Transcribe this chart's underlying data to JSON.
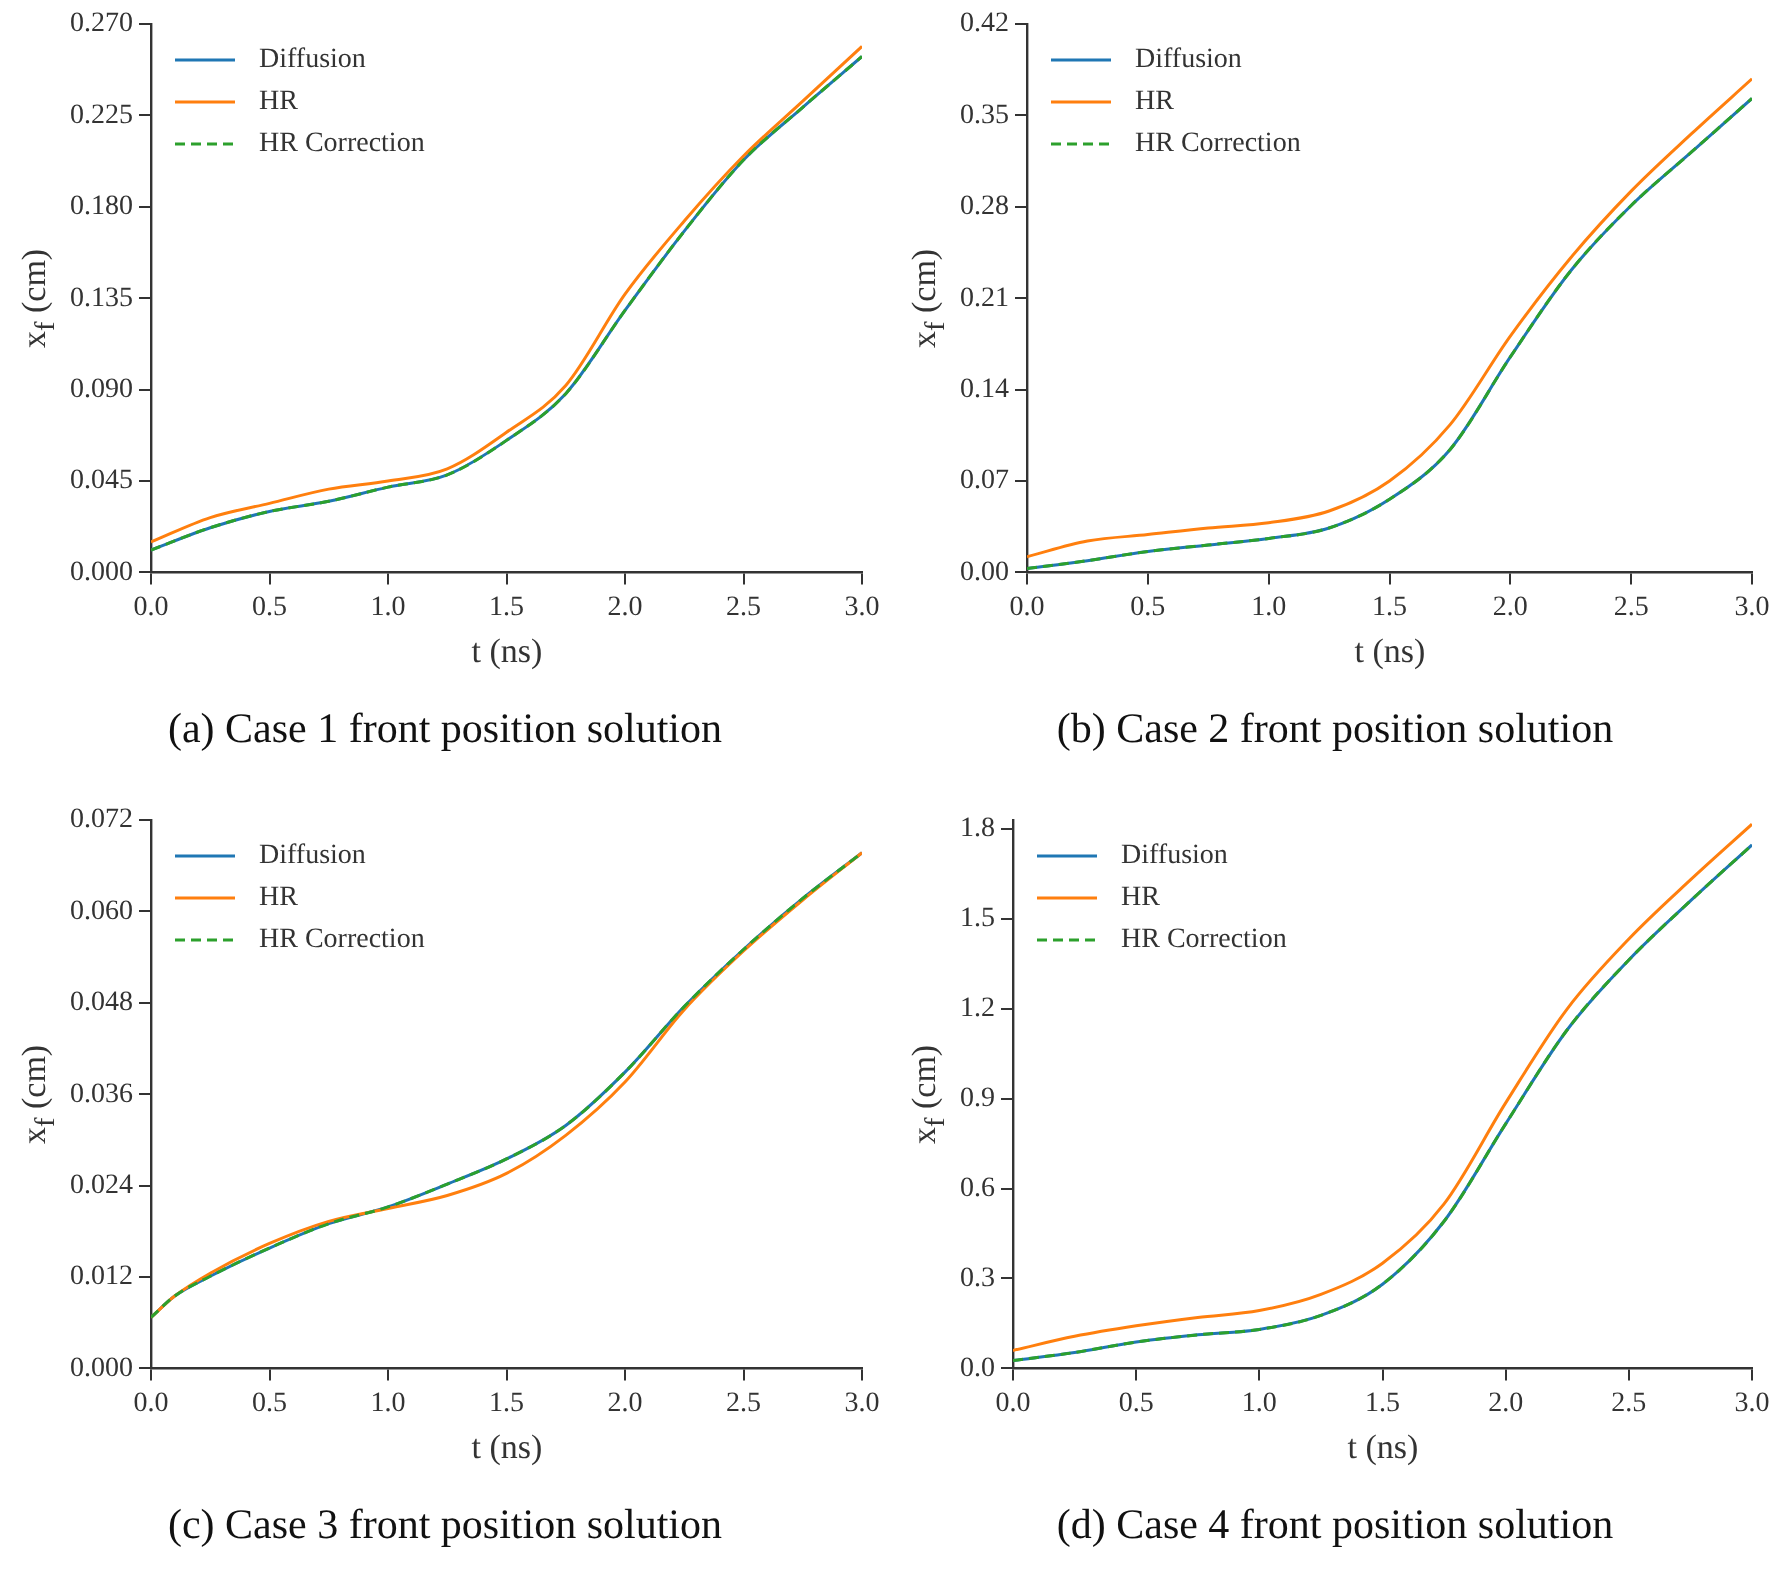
{
  "chart_data": [
    {
      "type": "line",
      "xlabel": "t (ns)",
      "ylabel": "x$_{f}$ (cm)",
      "legend": "top left",
      "annotations": [
        "(a) Case 1 front position solution"
      ],
      "xlim": [
        0,
        3
      ],
      "xticks": [
        {
          "value": 0,
          "label": "0.0"
        },
        {
          "value": 0.5,
          "label": "0.5"
        },
        {
          "value": 1,
          "label": "1.0"
        },
        {
          "value": 1.5,
          "label": "1.5"
        },
        {
          "value": 2,
          "label": "2.0"
        },
        {
          "value": 2.5,
          "label": "2.5"
        },
        {
          "value": 3,
          "label": "3.0"
        }
      ],
      "ylim": [
        0,
        0.27
      ],
      "yticks": [
        {
          "value": 0,
          "label": "0.000"
        },
        {
          "value": 0.045,
          "label": "0.045"
        },
        {
          "value": 0.09,
          "label": "0.090"
        },
        {
          "value": 0.135,
          "label": "0.135"
        },
        {
          "value": 0.18,
          "label": "0.180"
        },
        {
          "value": 0.225,
          "label": "0.225"
        },
        {
          "value": 0.27,
          "label": "0.270"
        }
      ],
      "x": [
        0,
        0.25,
        0.5,
        0.75,
        1,
        1.25,
        1.5,
        1.75,
        2,
        2.25,
        2.5,
        2.75,
        3
      ],
      "series": [
        {
          "name": "Diffusion",
          "color": "#1f77b4",
          "line_style": "solid",
          "values": [
            0.011,
            0.022,
            0.03,
            0.035,
            0.042,
            0.048,
            0.065,
            0.088,
            0.129,
            0.168,
            0.203,
            0.229,
            0.254
          ]
        },
        {
          "name": "HR",
          "color": "#ff7f0e",
          "line_style": "solid",
          "values": [
            0.015,
            0.027,
            0.034,
            0.041,
            0.045,
            0.051,
            0.069,
            0.092,
            0.137,
            0.173,
            0.205,
            0.232,
            0.259
          ]
        },
        {
          "name": "HR Correction",
          "color": "#2ca02c",
          "line_style": "dashed",
          "values": [
            0.011,
            0.022,
            0.03,
            0.035,
            0.042,
            0.048,
            0.065,
            0.088,
            0.129,
            0.168,
            0.203,
            0.229,
            0.254
          ]
        }
      ]
    },
    {
      "type": "line",
      "xlabel": "t (ns)",
      "ylabel": "x$_{f}$ (cm)",
      "legend": "top left",
      "annotations": [
        "(b) Case 2 front position solution"
      ],
      "xlim": [
        0,
        3
      ],
      "xticks": [
        {
          "value": 0,
          "label": "0.0"
        },
        {
          "value": 0.5,
          "label": "0.5"
        },
        {
          "value": 1,
          "label": "1.0"
        },
        {
          "value": 1.5,
          "label": "1.5"
        },
        {
          "value": 2,
          "label": "2.0"
        },
        {
          "value": 2.5,
          "label": "2.5"
        },
        {
          "value": 3,
          "label": "3.0"
        }
      ],
      "ylim": [
        0,
        0.42
      ],
      "yticks": [
        {
          "value": 0,
          "label": "0.00"
        },
        {
          "value": 0.07,
          "label": "0.07"
        },
        {
          "value": 0.14,
          "label": "0.14"
        },
        {
          "value": 0.21,
          "label": "0.21"
        },
        {
          "value": 0.28,
          "label": "0.28"
        },
        {
          "value": 0.35,
          "label": "0.35"
        },
        {
          "value": 0.42,
          "label": "0.42"
        }
      ],
      "x": [
        0,
        0.25,
        0.5,
        0.75,
        1,
        1.25,
        1.5,
        1.75,
        2,
        2.25,
        2.5,
        2.75,
        3
      ],
      "series": [
        {
          "name": "Diffusion",
          "color": "#1f77b4",
          "line_style": "solid",
          "values": [
            0.003,
            0.009,
            0.016,
            0.021,
            0.026,
            0.034,
            0.056,
            0.094,
            0.165,
            0.231,
            0.281,
            0.322,
            0.363
          ]
        },
        {
          "name": "HR",
          "color": "#ff7f0e",
          "line_style": "solid",
          "values": [
            0.012,
            0.024,
            0.029,
            0.034,
            0.038,
            0.047,
            0.07,
            0.113,
            0.181,
            0.241,
            0.292,
            0.336,
            0.378
          ]
        },
        {
          "name": "HR Correction",
          "color": "#2ca02c",
          "line_style": "dashed",
          "values": [
            0.003,
            0.009,
            0.016,
            0.021,
            0.026,
            0.034,
            0.056,
            0.094,
            0.165,
            0.231,
            0.281,
            0.322,
            0.363
          ]
        }
      ]
    },
    {
      "type": "line",
      "xlabel": "t (ns)",
      "ylabel": "x$_{f}$ (cm)",
      "legend": "top left",
      "annotations": [
        "(c) Case 3 front position solution"
      ],
      "xlim": [
        0,
        3
      ],
      "xticks": [
        {
          "value": 0,
          "label": "0.0"
        },
        {
          "value": 0.5,
          "label": "0.5"
        },
        {
          "value": 1,
          "label": "1.0"
        },
        {
          "value": 1.5,
          "label": "1.5"
        },
        {
          "value": 2,
          "label": "2.0"
        },
        {
          "value": 2.5,
          "label": "2.5"
        },
        {
          "value": 3,
          "label": "3.0"
        }
      ],
      "ylim": [
        0,
        0.072
      ],
      "yticks": [
        {
          "value": 0,
          "label": "0.000"
        },
        {
          "value": 0.012,
          "label": "0.012"
        },
        {
          "value": 0.024,
          "label": "0.024"
        },
        {
          "value": 0.036,
          "label": "0.036"
        },
        {
          "value": 0.048,
          "label": "0.048"
        },
        {
          "value": 0.06,
          "label": "0.060"
        },
        {
          "value": 0.072,
          "label": "0.072"
        }
      ],
      "x": [
        0,
        0.1,
        0.25,
        0.5,
        0.75,
        1,
        1.25,
        1.5,
        1.75,
        2,
        2.25,
        2.5,
        2.75,
        3
      ],
      "series": [
        {
          "name": "Diffusion",
          "color": "#1f77b4",
          "line_style": "solid",
          "values": [
            0.0067,
            0.0095,
            0.0121,
            0.0158,
            0.019,
            0.0212,
            0.0242,
            0.0275,
            0.0319,
            0.0389,
            0.0475,
            0.055,
            0.0617,
            0.0677
          ]
        },
        {
          "name": "HR",
          "color": "#ff7f0e",
          "line_style": "solid",
          "values": [
            0.0067,
            0.0095,
            0.0125,
            0.0164,
            0.0193,
            0.021,
            0.0227,
            0.0256,
            0.0306,
            0.0376,
            0.0471,
            0.0548,
            0.0615,
            0.0677
          ]
        },
        {
          "name": "HR Correction",
          "color": "#2ca02c",
          "line_style": "dashed",
          "values": [
            0.0067,
            0.0095,
            0.0121,
            0.0158,
            0.019,
            0.0212,
            0.0242,
            0.0275,
            0.0319,
            0.0389,
            0.0475,
            0.055,
            0.0617,
            0.0677
          ]
        }
      ]
    },
    {
      "type": "line",
      "xlabel": "t (ns)",
      "ylabel": "x$_{f}$ (cm)",
      "legend": "top left",
      "annotations": [
        "(d) Case 4 front position solution"
      ],
      "xlim": [
        0,
        3
      ],
      "xticks": [
        {
          "value": 0,
          "label": "0.0"
        },
        {
          "value": 0.5,
          "label": "0.5"
        },
        {
          "value": 1,
          "label": "1.0"
        },
        {
          "value": 1.5,
          "label": "1.5"
        },
        {
          "value": 2,
          "label": "2.0"
        },
        {
          "value": 2.5,
          "label": "2.5"
        },
        {
          "value": 3,
          "label": "3.0"
        }
      ],
      "ylim": [
        0,
        1.83
      ],
      "yticks": [
        {
          "value": 0,
          "label": "0.0"
        },
        {
          "value": 0.3,
          "label": "0.3"
        },
        {
          "value": 0.6,
          "label": "0.6"
        },
        {
          "value": 0.9,
          "label": "0.9"
        },
        {
          "value": 1.2,
          "label": "1.2"
        },
        {
          "value": 1.5,
          "label": "1.5"
        },
        {
          "value": 1.8,
          "label": "1.8"
        }
      ],
      "x": [
        0,
        0.25,
        0.5,
        0.75,
        1,
        1.25,
        1.5,
        1.75,
        2,
        2.25,
        2.5,
        2.75,
        3
      ],
      "series": [
        {
          "name": "Diffusion",
          "color": "#1f77b4",
          "line_style": "solid",
          "values": [
            0.026,
            0.053,
            0.088,
            0.112,
            0.13,
            0.177,
            0.281,
            0.491,
            0.816,
            1.13,
            1.363,
            1.56,
            1.747
          ]
        },
        {
          "name": "HR",
          "color": "#ff7f0e",
          "line_style": "solid",
          "values": [
            0.06,
            0.107,
            0.142,
            0.17,
            0.193,
            0.247,
            0.351,
            0.549,
            0.886,
            1.2,
            1.433,
            1.63,
            1.816
          ]
        },
        {
          "name": "HR Correction",
          "color": "#2ca02c",
          "line_style": "dashed",
          "values": [
            0.026,
            0.053,
            0.088,
            0.112,
            0.13,
            0.177,
            0.281,
            0.491,
            0.816,
            1.13,
            1.363,
            1.56,
            1.747
          ]
        }
      ]
    }
  ]
}
